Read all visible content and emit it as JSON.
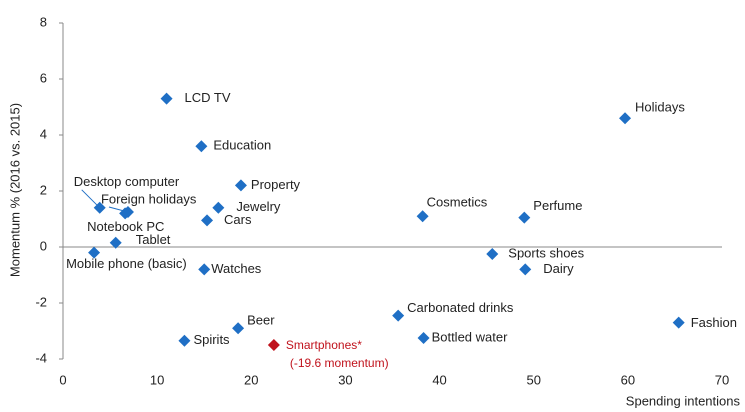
{
  "chart_data": {
    "type": "scatter",
    "x_label": "Spending intentions",
    "y_label": "Momentum %  (2016 vs. 2015)",
    "point_labels": [
      "LCD TV",
      "Holidays",
      "Education",
      "Property",
      "Desktop computer",
      "Foreign holidays",
      "Jewelry",
      "Cars",
      "Cosmetics",
      "Perfume",
      "Notebook PC",
      "Tablet",
      "Mobile phone (basic)",
      "Watches",
      "Sports shoes",
      "Dairy",
      "Carbonated drinks",
      "Fashion",
      "Beer",
      "Spirits",
      "Bottled water",
      "Smartphones*"
    ],
    "x": [
      11,
      59.7,
      14.7,
      18.9,
      3.9,
      6.9,
      16.5,
      15.3,
      38.2,
      49,
      6.6,
      5.6,
      3.3,
      15,
      45.6,
      49.1,
      35.6,
      65.4,
      18.6,
      12.9,
      38.3,
      22.4
    ],
    "values": [
      5.3,
      4.6,
      3.6,
      2.2,
      1.4,
      1.25,
      1.4,
      0.95,
      1.1,
      1.05,
      1.2,
      0.15,
      -0.2,
      -0.8,
      -0.25,
      -0.8,
      -2.45,
      -2.7,
      -2.9,
      -3.35,
      -3.25,
      -3.5
    ],
    "colors": [
      "#1f6fc5",
      "#1f6fc5",
      "#1f6fc5",
      "#1f6fc5",
      "#1f6fc5",
      "#1f6fc5",
      "#1f6fc5",
      "#1f6fc5",
      "#1f6fc5",
      "#1f6fc5",
      "#1f6fc5",
      "#1f6fc5",
      "#1f6fc5",
      "#1f6fc5",
      "#1f6fc5",
      "#1f6fc5",
      "#1f6fc5",
      "#1f6fc5",
      "#1f6fc5",
      "#1f6fc5",
      "#1f6fc5",
      "#c0121c"
    ],
    "annotation": "(-19.6 momentum)",
    "xlim": [
      0,
      70
    ],
    "xticks": [
      0,
      10,
      20,
      30,
      40,
      50,
      60,
      70
    ],
    "ylim": [
      -4,
      8
    ],
    "yticks": [
      -4,
      -2,
      0,
      2,
      4,
      6,
      8
    ],
    "grid": false
  }
}
